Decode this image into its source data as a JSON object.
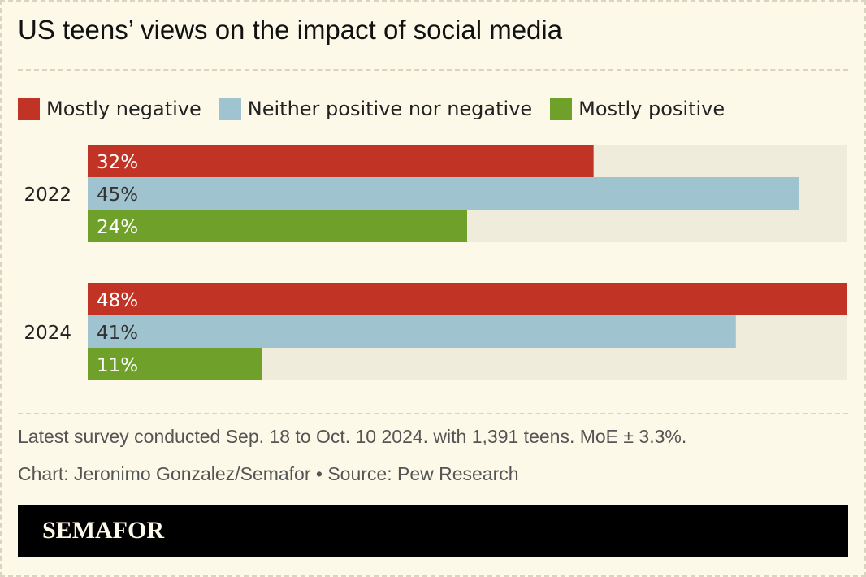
{
  "title": "US teens’ views on the impact of social media",
  "colors": {
    "background": "#fdf9e8",
    "track": "#f0ecdb",
    "negative": "#c03325",
    "neutral": "#a0c3d0",
    "positive": "#6ea02a",
    "footer": "#000000"
  },
  "legend": [
    {
      "label": "Mostly negative",
      "color": "#c03325"
    },
    {
      "label": "Neither positive nor negative",
      "color": "#a0c3d0"
    },
    {
      "label": "Mostly positive",
      "color": "#6ea02a"
    }
  ],
  "chart_data": {
    "type": "bar",
    "orientation": "horizontal",
    "categories": [
      "2022",
      "2024"
    ],
    "series": [
      {
        "name": "Mostly negative",
        "values": [
          32,
          48
        ],
        "labels": [
          "32%",
          "48%"
        ],
        "color": "#c03325",
        "label_color": "#ffffff"
      },
      {
        "name": "Neither positive nor negative",
        "values": [
          45,
          41
        ],
        "labels": [
          "45%",
          "41%"
        ],
        "color": "#a0c3d0",
        "label_color": "#333333"
      },
      {
        "name": "Mostly positive",
        "values": [
          24,
          11
        ],
        "labels": [
          "24%",
          "11%"
        ],
        "color": "#6ea02a",
        "label_color": "#ffffff"
      }
    ],
    "xlim": [
      0,
      48
    ],
    "grid": false,
    "legend_position": "top-left",
    "title": "US teens’ views on the impact of social media"
  },
  "notes": {
    "survey": "Latest survey conducted Sep. 18 to Oct. 10 2024. with 1,391 teens. MoE ± 3.3%.",
    "credit": "Chart: Jeronimo Gonzalez/Semafor • Source: Pew Research"
  },
  "footer": {
    "logo": "SEMAFOR"
  }
}
